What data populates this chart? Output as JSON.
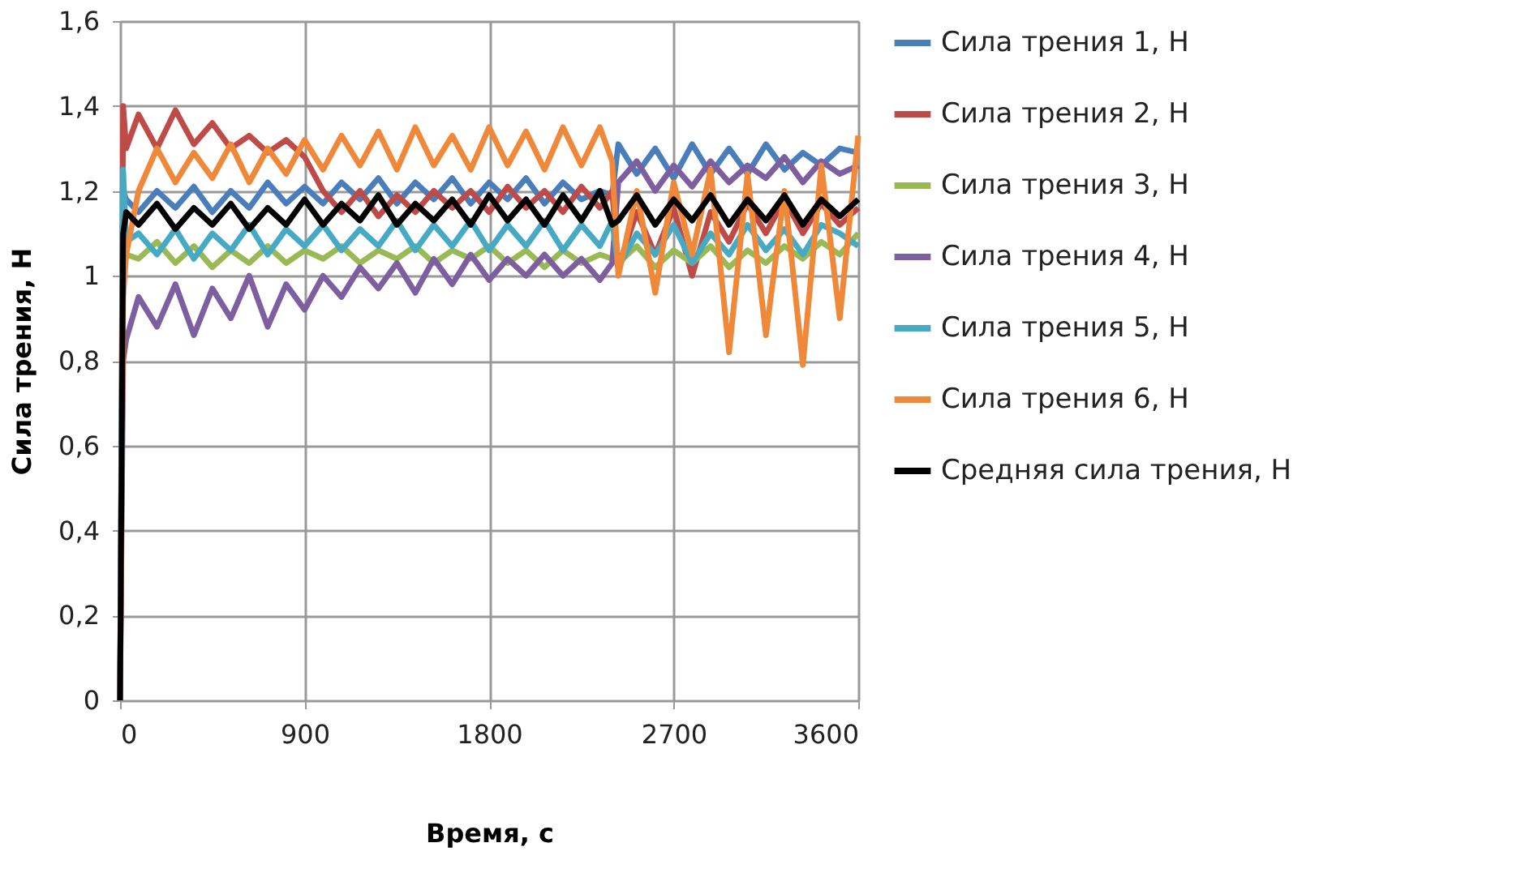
{
  "chart_data": {
    "type": "line",
    "xlabel": "Время, с",
    "ylabel": "Сила трения, Н",
    "x": [
      0,
      15,
      30,
      90,
      180,
      270,
      360,
      450,
      540,
      630,
      720,
      810,
      900,
      990,
      1080,
      1170,
      1260,
      1350,
      1440,
      1530,
      1620,
      1710,
      1800,
      1890,
      1980,
      2070,
      2160,
      2250,
      2340,
      2400,
      2430,
      2520,
      2610,
      2700,
      2790,
      2880,
      2970,
      3060,
      3150,
      3240,
      3330,
      3420,
      3510,
      3600
    ],
    "series": [
      {
        "name": "Сила трения 1, Н",
        "color": "#4a7ebb",
        "values": [
          0,
          1.2,
          1.18,
          1.15,
          1.2,
          1.16,
          1.21,
          1.15,
          1.2,
          1.16,
          1.22,
          1.17,
          1.21,
          1.17,
          1.22,
          1.18,
          1.23,
          1.17,
          1.22,
          1.18,
          1.23,
          1.17,
          1.22,
          1.18,
          1.23,
          1.17,
          1.22,
          1.18,
          1.2,
          1.19,
          1.31,
          1.24,
          1.3,
          1.23,
          1.31,
          1.24,
          1.3,
          1.24,
          1.31,
          1.25,
          1.29,
          1.26,
          1.3,
          1.29
        ]
      },
      {
        "name": "Сила трения 2, Н",
        "color": "#be4b48",
        "values": [
          0,
          1.4,
          1.3,
          1.38,
          1.3,
          1.39,
          1.31,
          1.36,
          1.3,
          1.33,
          1.29,
          1.32,
          1.28,
          1.2,
          1.15,
          1.2,
          1.14,
          1.19,
          1.15,
          1.2,
          1.16,
          1.2,
          1.15,
          1.21,
          1.16,
          1.2,
          1.15,
          1.21,
          1.16,
          1.2,
          1.02,
          1.15,
          1.05,
          1.16,
          1.0,
          1.15,
          1.08,
          1.17,
          1.1,
          1.18,
          1.1,
          1.17,
          1.12,
          1.16
        ]
      },
      {
        "name": "Сила трения 3, Н",
        "color": "#98b954",
        "values": [
          0,
          1.0,
          1.05,
          1.04,
          1.08,
          1.03,
          1.07,
          1.02,
          1.06,
          1.03,
          1.07,
          1.03,
          1.06,
          1.04,
          1.07,
          1.03,
          1.06,
          1.04,
          1.07,
          1.03,
          1.06,
          1.04,
          1.07,
          1.03,
          1.06,
          1.02,
          1.06,
          1.03,
          1.05,
          1.04,
          1.03,
          1.07,
          1.02,
          1.06,
          1.03,
          1.07,
          1.02,
          1.06,
          1.03,
          1.07,
          1.04,
          1.08,
          1.05,
          1.1
        ]
      },
      {
        "name": "Сила трения 4, Н",
        "color": "#7d5fa0",
        "values": [
          0,
          0.8,
          0.85,
          0.95,
          0.88,
          0.98,
          0.86,
          0.97,
          0.9,
          1.0,
          0.88,
          0.98,
          0.92,
          1.0,
          0.95,
          1.02,
          0.97,
          1.03,
          0.96,
          1.04,
          0.98,
          1.05,
          0.99,
          1.04,
          1.0,
          1.05,
          1.0,
          1.04,
          0.99,
          1.03,
          1.22,
          1.27,
          1.2,
          1.26,
          1.21,
          1.27,
          1.22,
          1.26,
          1.23,
          1.28,
          1.22,
          1.27,
          1.24,
          1.26
        ]
      },
      {
        "name": "Сила трения 5, Н",
        "color": "#46aac5",
        "values": [
          0,
          1.25,
          1.08,
          1.1,
          1.05,
          1.11,
          1.04,
          1.1,
          1.06,
          1.12,
          1.05,
          1.11,
          1.07,
          1.12,
          1.06,
          1.11,
          1.07,
          1.13,
          1.06,
          1.12,
          1.07,
          1.13,
          1.06,
          1.12,
          1.07,
          1.13,
          1.06,
          1.12,
          1.07,
          1.13,
          1.02,
          1.1,
          1.05,
          1.12,
          1.03,
          1.1,
          1.05,
          1.12,
          1.06,
          1.11,
          1.05,
          1.12,
          1.1,
          1.07
        ]
      },
      {
        "name": "Сила трения 6, Н",
        "color": "#f0883a",
        "values": [
          0,
          0.95,
          1.05,
          1.2,
          1.3,
          1.22,
          1.29,
          1.23,
          1.31,
          1.22,
          1.3,
          1.24,
          1.32,
          1.25,
          1.33,
          1.26,
          1.34,
          1.25,
          1.35,
          1.26,
          1.33,
          1.25,
          1.35,
          1.26,
          1.34,
          1.25,
          1.35,
          1.26,
          1.35,
          1.27,
          1.0,
          1.2,
          0.96,
          1.22,
          1.05,
          1.25,
          0.82,
          1.24,
          0.86,
          1.2,
          0.79,
          1.26,
          0.9,
          1.33
        ]
      },
      {
        "name": "Средняя сила трения, Н",
        "color": "#000000",
        "values": [
          0,
          1.1,
          1.15,
          1.12,
          1.17,
          1.11,
          1.16,
          1.12,
          1.17,
          1.11,
          1.16,
          1.12,
          1.18,
          1.12,
          1.17,
          1.13,
          1.19,
          1.12,
          1.17,
          1.13,
          1.18,
          1.12,
          1.19,
          1.13,
          1.18,
          1.12,
          1.19,
          1.13,
          1.2,
          1.12,
          1.13,
          1.19,
          1.12,
          1.18,
          1.13,
          1.19,
          1.12,
          1.18,
          1.13,
          1.19,
          1.12,
          1.18,
          1.14,
          1.18
        ]
      }
    ],
    "xlim": [
      0,
      3600
    ],
    "xticks": [
      0,
      900,
      1800,
      2700,
      3600
    ],
    "ylim": [
      0,
      1.6
    ],
    "yticks": [
      0,
      {
        "value": 0.2,
        "label": "0,2"
      },
      {
        "value": 0.4,
        "label": "0,4"
      },
      {
        "value": 0.6,
        "label": "0,6"
      },
      {
        "value": 0.8,
        "label": "0,8"
      },
      1,
      {
        "value": 1.2,
        "label": "1,2"
      },
      {
        "value": 1.4,
        "label": "1,4"
      },
      {
        "value": 1.6,
        "label": "1,6"
      }
    ],
    "grid": true,
    "legend": "right"
  }
}
